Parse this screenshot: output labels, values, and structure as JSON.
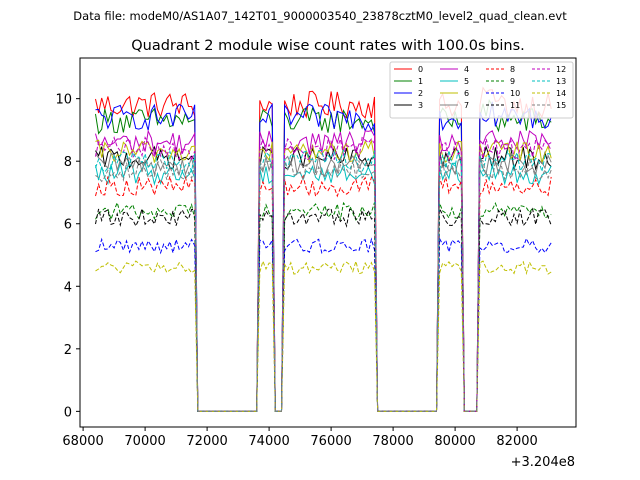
{
  "chart_data": {
    "type": "line",
    "suptitle": "Data file: modeM0/AS1A07_142T01_9000003540_23878cztM0_level2_quad_clean.evt",
    "title": "Quadrant 2 module wise count rates with 100.0s bins.",
    "xlabel": "",
    "ylabel": "",
    "x_offset_label": "+3.204e8",
    "xlim": [
      67900,
      83900
    ],
    "ylim": [
      -0.5,
      11.3
    ],
    "xticks": [
      68000,
      70000,
      72000,
      74000,
      76000,
      78000,
      80000,
      82000
    ],
    "xtick_labels": [
      "68000",
      "70000",
      "72000",
      "74000",
      "76000",
      "78000",
      "80000",
      "82000"
    ],
    "yticks": [
      0,
      2,
      4,
      6,
      8,
      10
    ],
    "ytick_labels": [
      "0",
      "2",
      "4",
      "6",
      "8",
      "10"
    ],
    "gaps": [
      [
        71650,
        73650
      ],
      [
        74150,
        74450
      ],
      [
        77450,
        79450
      ],
      [
        80250,
        80750
      ]
    ],
    "x_range": [
      68400,
      83150
    ],
    "bin_seconds": 100,
    "legend_position": "top-right",
    "series": [
      {
        "name": "0",
        "color": "#ff0000",
        "dash": "solid",
        "level": 9.8
      },
      {
        "name": "1",
        "color": "#008000",
        "dash": "solid",
        "level": 9.3
      },
      {
        "name": "2",
        "color": "#0000ff",
        "dash": "solid",
        "level": 9.4
      },
      {
        "name": "3",
        "color": "#000000",
        "dash": "solid",
        "level": 8.1
      },
      {
        "name": "4",
        "color": "#bf00bf",
        "dash": "solid",
        "level": 8.6
      },
      {
        "name": "5",
        "color": "#00bfbf",
        "dash": "solid",
        "level": 7.6
      },
      {
        "name": "6",
        "color": "#bfbf00",
        "dash": "solid",
        "level": 8.3
      },
      {
        "name": "7",
        "color": "#808080",
        "dash": "solid",
        "level": 7.9
      },
      {
        "name": "8",
        "color": "#ff0000",
        "dash": "dashed",
        "level": 7.2
      },
      {
        "name": "9",
        "color": "#008000",
        "dash": "dashed",
        "level": 6.4
      },
      {
        "name": "10",
        "color": "#0000ff",
        "dash": "dashed",
        "level": 5.3
      },
      {
        "name": "11",
        "color": "#000000",
        "dash": "dashed",
        "level": 6.2
      },
      {
        "name": "12",
        "color": "#bf00bf",
        "dash": "dashed",
        "level": 8.4
      },
      {
        "name": "13",
        "color": "#00bfbf",
        "dash": "dashed",
        "level": 8.0
      },
      {
        "name": "14",
        "color": "#bfbf00",
        "dash": "dashed",
        "level": 4.6
      },
      {
        "name": "15",
        "color": "#808080",
        "dash": "dashed",
        "level": 7.7
      }
    ]
  }
}
